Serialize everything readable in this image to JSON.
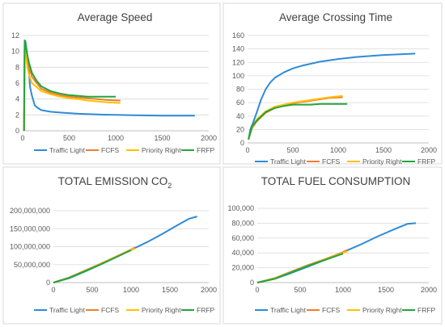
{
  "colors": {
    "traffic_light": "#2E8BD7",
    "fcfs": "#ED7D31",
    "priority_right": "#FFC000",
    "frfp": "#22A53A",
    "grid": "#D9D9D9",
    "axis": "#BFBFBF",
    "panel_border": "#D9D9D9"
  },
  "chart_data": [
    {
      "type": "line",
      "title": "Average Speed",
      "xlim": [
        0,
        2000
      ],
      "xticks": [
        "0",
        "500",
        "1000",
        "1500",
        "2000"
      ],
      "ylim": [
        0,
        12
      ],
      "yticks": [
        "0",
        "2",
        "4",
        "6",
        "8",
        "10",
        "12"
      ],
      "grid": true,
      "legend": "bottom",
      "series": [
        {
          "name": "Traffic Light",
          "x": [
            15,
            22,
            30,
            45,
            60,
            80,
            100,
            130,
            160,
            200,
            300,
            400,
            600,
            800,
            1000,
            1200,
            1500,
            1850
          ],
          "y": [
            0,
            11.2,
            11.3,
            10,
            8.5,
            5.5,
            4.4,
            3.2,
            2.9,
            2.6,
            2.4,
            2.3,
            2.15,
            2.05,
            2.0,
            1.95,
            1.9,
            1.9
          ]
        },
        {
          "name": "FCFS",
          "x": [
            15,
            22,
            30,
            50,
            70,
            100,
            150,
            200,
            300,
            400,
            500,
            600,
            700,
            800,
            900,
            1050
          ],
          "y": [
            0,
            11.0,
            10.8,
            9.0,
            8.0,
            6.8,
            6.0,
            5.3,
            4.8,
            4.5,
            4.3,
            4.2,
            4.1,
            4.0,
            3.9,
            3.8
          ]
        },
        {
          "name": "Priority Right",
          "x": [
            15,
            22,
            30,
            50,
            70,
            100,
            150,
            200,
            300,
            400,
            500,
            600,
            700,
            800,
            900,
            1050
          ],
          "y": [
            0,
            10.5,
            10.2,
            8.0,
            7.0,
            6.0,
            5.5,
            5.0,
            4.6,
            4.3,
            4.1,
            4.0,
            3.8,
            3.7,
            3.6,
            3.5
          ]
        },
        {
          "name": "FRFP",
          "x": [
            15,
            22,
            30,
            50,
            70,
            100,
            150,
            200,
            300,
            400,
            500,
            600,
            700,
            800,
            900,
            1000
          ],
          "y": [
            0,
            11.4,
            11.0,
            9.5,
            8.5,
            7.3,
            6.3,
            5.6,
            5.0,
            4.7,
            4.5,
            4.4,
            4.3,
            4.3,
            4.3,
            4.3
          ]
        }
      ],
      "legend_labels": [
        "Traffic Light",
        "FCFS",
        "Priority Right",
        "FRFP"
      ]
    },
    {
      "type": "line",
      "title": "Average Crossing Time",
      "xlim": [
        0,
        2000
      ],
      "xticks": [
        "0",
        "500",
        "1000",
        "1500",
        "2000"
      ],
      "ylim": [
        0,
        160
      ],
      "yticks": [
        "0",
        "20",
        "40",
        "60",
        "80",
        "100",
        "120",
        "140",
        "160"
      ],
      "grid": true,
      "legend": "bottom",
      "series": [
        {
          "name": "Traffic Light",
          "x": [
            10,
            30,
            60,
            100,
            150,
            200,
            250,
            300,
            400,
            500,
            600,
            800,
            1000,
            1200,
            1500,
            1850
          ],
          "y": [
            5,
            20,
            30,
            45,
            65,
            80,
            90,
            97,
            105,
            111,
            115,
            121,
            125,
            128,
            131,
            133
          ]
        },
        {
          "name": "FCFS",
          "x": [
            10,
            50,
            100,
            200,
            300,
            400,
            500,
            600,
            700,
            800,
            900,
            1050
          ],
          "y": [
            5,
            22,
            32,
            45,
            52,
            56,
            59,
            61,
            63,
            65,
            67,
            68
          ]
        },
        {
          "name": "Priority Right",
          "x": [
            10,
            50,
            100,
            200,
            300,
            400,
            500,
            600,
            700,
            800,
            900,
            1050
          ],
          "y": [
            5,
            24,
            35,
            47,
            54,
            57,
            60,
            62,
            64,
            66,
            68,
            70
          ]
        },
        {
          "name": "FRFP",
          "x": [
            10,
            50,
            100,
            200,
            300,
            400,
            500,
            600,
            700,
            800,
            900,
            1000,
            1100
          ],
          "y": [
            5,
            25,
            33,
            46,
            52,
            55,
            57,
            57,
            57,
            58,
            58,
            58,
            58
          ]
        }
      ],
      "legend_labels": [
        "Traffic Light",
        "FCFS",
        "Priority Right",
        "FRFP"
      ]
    },
    {
      "type": "line",
      "title": "TOTAL EMISSION CO",
      "title_sub": "2",
      "xlim": [
        0,
        2000
      ],
      "xticks": [
        "0",
        "500",
        "1000",
        "1500",
        "2000"
      ],
      "ylim": [
        0,
        200000000
      ],
      "yticks": [
        "0",
        "50,000,000",
        "100,000,000",
        "150,000,000",
        "200,000,000"
      ],
      "grid": true,
      "legend": "bottom",
      "series": [
        {
          "name": "Traffic Light",
          "x": [
            0,
            200,
            400,
            600,
            800,
            1000,
            1200,
            1400,
            1600,
            1750,
            1850
          ],
          "y": [
            0,
            12000000,
            30000000,
            50000000,
            70000000,
            91000000,
            112000000,
            135000000,
            160000000,
            178000000,
            184000000
          ]
        },
        {
          "name": "FCFS",
          "x": [
            0,
            200,
            400,
            600,
            800,
            1000,
            1050
          ],
          "y": [
            0,
            14000000,
            33000000,
            52000000,
            72000000,
            92000000,
            98000000
          ]
        },
        {
          "name": "Priority Right",
          "x": [
            0,
            200,
            400,
            600,
            800,
            1000,
            1050
          ],
          "y": [
            0,
            13000000,
            32000000,
            51000000,
            71000000,
            90000000,
            95000000
          ]
        },
        {
          "name": "FRFP",
          "x": [
            0,
            200,
            400,
            600,
            800,
            1000
          ],
          "y": [
            0,
            13000000,
            31000000,
            50000000,
            70000000,
            90000000
          ]
        }
      ],
      "legend_labels": [
        "Traffic Light",
        "FCFS",
        "Priority Right",
        "FRFP"
      ]
    },
    {
      "type": "line",
      "title": "TOTAL FUEL CONSUMPTION",
      "xlim": [
        0,
        2000
      ],
      "xticks": [
        "0",
        "500",
        "1000",
        "1500",
        "2000"
      ],
      "ylim": [
        0,
        100000
      ],
      "yticks": [
        "0",
        "20,000",
        "40,000",
        "60,000",
        "80,000",
        "100,000"
      ],
      "grid": true,
      "legend": "bottom",
      "series": [
        {
          "name": "Traffic Light",
          "x": [
            0,
            200,
            400,
            600,
            800,
            1000,
            1200,
            1400,
            1600,
            1750,
            1850
          ],
          "y": [
            0,
            5000,
            13000,
            22000,
            31000,
            41000,
            51000,
            62000,
            72000,
            79000,
            80000
          ]
        },
        {
          "name": "FCFS",
          "x": [
            0,
            200,
            400,
            600,
            800,
            1000,
            1050
          ],
          "y": [
            0,
            6000,
            15000,
            24000,
            32000,
            41000,
            44000
          ]
        },
        {
          "name": "Priority Right",
          "x": [
            0,
            200,
            400,
            600,
            800,
            1000,
            1050
          ],
          "y": [
            0,
            5500,
            14500,
            23500,
            31500,
            40000,
            42000
          ]
        },
        {
          "name": "FRFP",
          "x": [
            0,
            200,
            400,
            600,
            800,
            1000
          ],
          "y": [
            0,
            5000,
            14000,
            23000,
            31000,
            39000
          ]
        }
      ],
      "legend_labels": [
        "Traffic Light",
        "FCFS",
        "Priority Right",
        "FRFP"
      ]
    }
  ]
}
